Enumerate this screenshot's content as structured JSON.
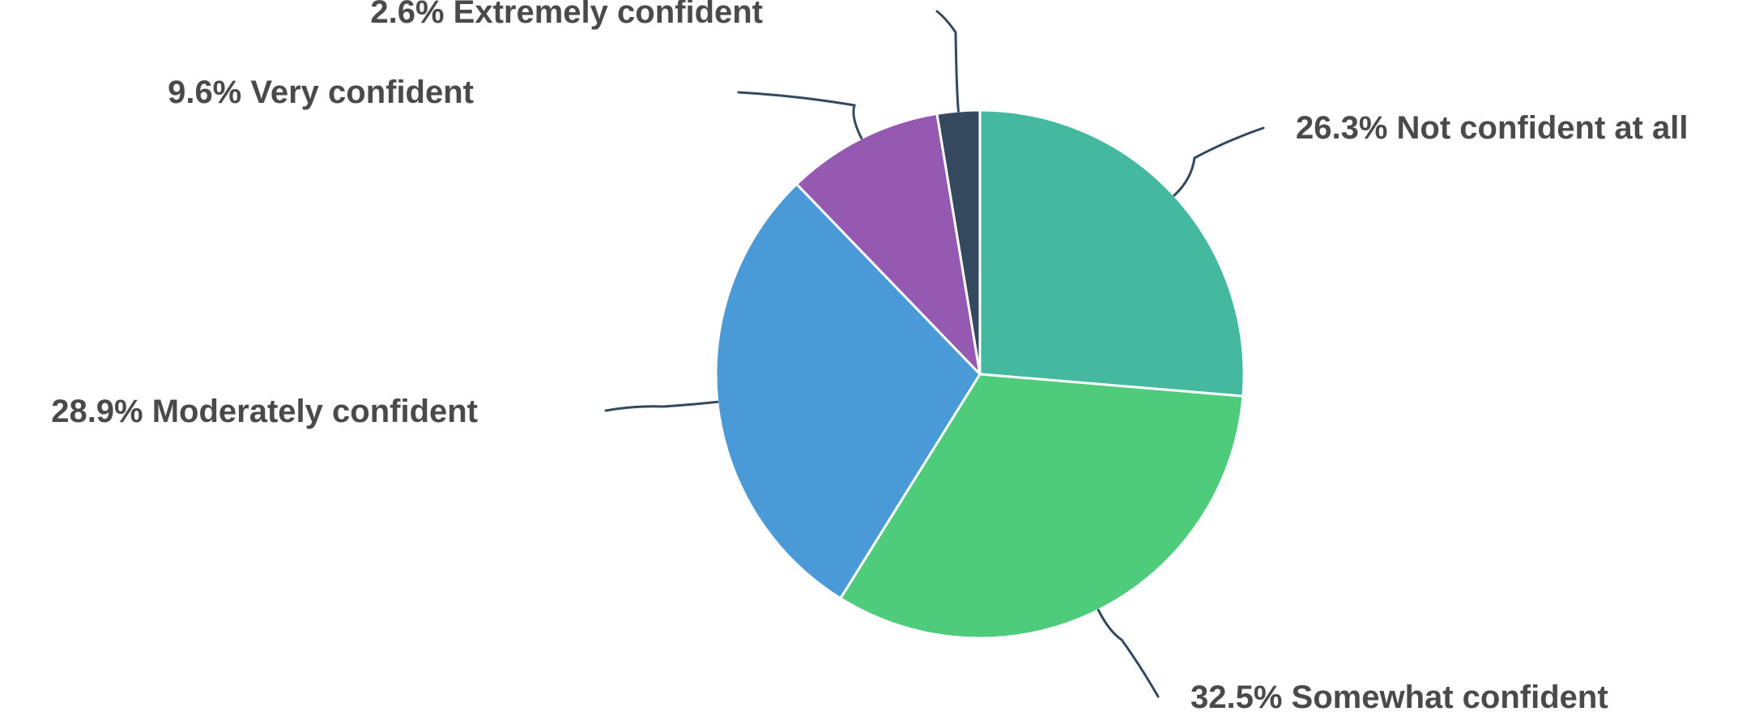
{
  "chart_data": {
    "type": "pie",
    "start_angle_deg": 0,
    "direction": "clockwise",
    "legend": "none",
    "slices": [
      {
        "name": "Not confident at all",
        "value": 26.3,
        "label": "26.3% Not confident at all",
        "color": "#45b99f"
      },
      {
        "name": "Somewhat confident",
        "value": 32.5,
        "label": "32.5% Somewhat confident",
        "color": "#4ecb7b"
      },
      {
        "name": "Moderately confident",
        "value": 28.9,
        "label": "28.9% Moderately confident",
        "color": "#4a9ad7"
      },
      {
        "name": "Very confident",
        "value": 9.6,
        "label": "9.6% Very confident",
        "color": "#9659b1"
      },
      {
        "name": "Extremely confident",
        "value": 2.6,
        "label": "2.6% Extremely confident",
        "color": "#34495e"
      }
    ]
  }
}
